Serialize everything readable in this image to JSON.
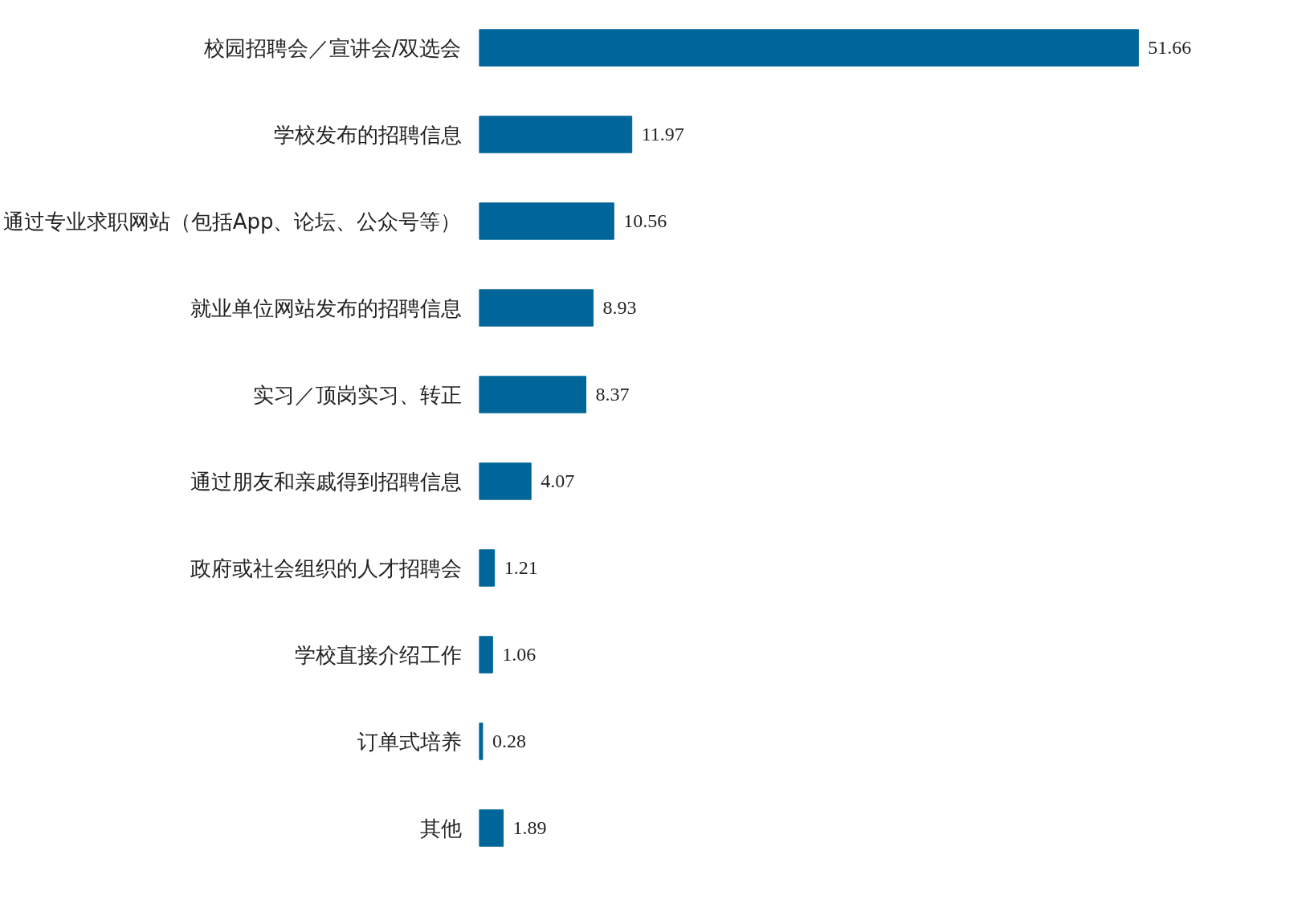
{
  "chart_data": {
    "type": "bar",
    "orientation": "horizontal",
    "categories": [
      "校园招聘会／宣讲会/双选会",
      "学校发布的招聘信息",
      "通过专业求职网站（包括App、论坛、公众号等）",
      "就业单位网站发布的招聘信息",
      "实习／顶岗实习、转正",
      "通过朋友和亲戚得到招聘信息",
      "政府或社会组织的人才招聘会",
      "学校直接介绍工作",
      "订单式培养",
      "其他"
    ],
    "values": [
      51.66,
      11.97,
      10.56,
      8.93,
      8.37,
      4.07,
      1.21,
      1.06,
      0.28,
      1.89
    ],
    "color": "#006699",
    "data_labels": true,
    "tick_labels": "y"
  }
}
